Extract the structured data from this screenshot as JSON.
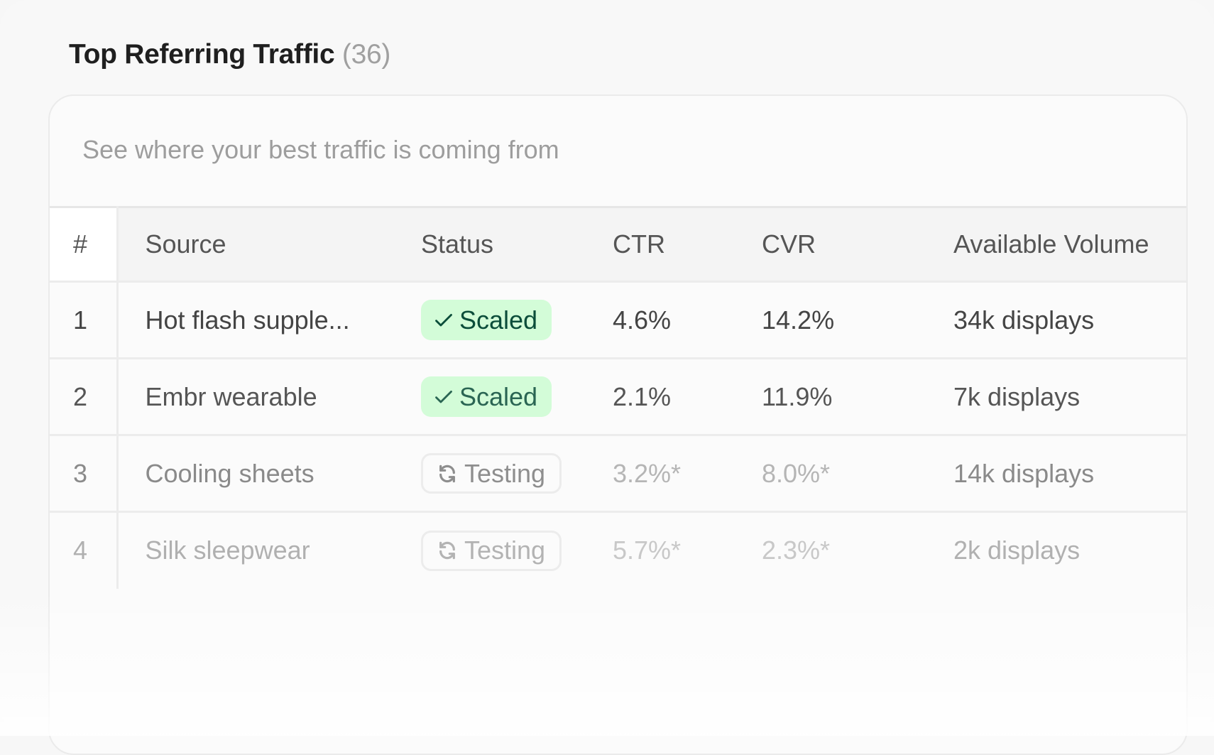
{
  "header": {
    "title": "Top Referring Traffic",
    "count": "(36)"
  },
  "card": {
    "subtitle": "See where your best traffic is coming from"
  },
  "table": {
    "columns": [
      "#",
      "Source",
      "Status",
      "CTR",
      "CVR",
      "Available Volume"
    ],
    "rows": [
      {
        "num": "1",
        "source": "Hot flash supple...",
        "status": "Scaled",
        "status_icon": "check-icon",
        "ctr": "4.6%",
        "cvr": "14.2%",
        "volume": "34k displays"
      },
      {
        "num": "2",
        "source": "Embr wearable",
        "status": "Scaled",
        "status_icon": "check-icon",
        "ctr": "2.1%",
        "cvr": "11.9%",
        "volume": "7k displays"
      },
      {
        "num": "3",
        "source": "Cooling sheets",
        "status": "Testing",
        "status_icon": "refresh-icon",
        "ctr": "3.2%*",
        "cvr": "8.0%*",
        "volume": "14k displays"
      },
      {
        "num": "4",
        "source": "Silk sleepwear",
        "status": "Testing",
        "status_icon": "refresh-icon",
        "ctr": "5.7%*",
        "cvr": "2.3%*",
        "volume": "2k displays"
      }
    ]
  },
  "colors": {
    "scaled_bg": "#d3fcd8",
    "scaled_text": "#0b4d3a"
  }
}
